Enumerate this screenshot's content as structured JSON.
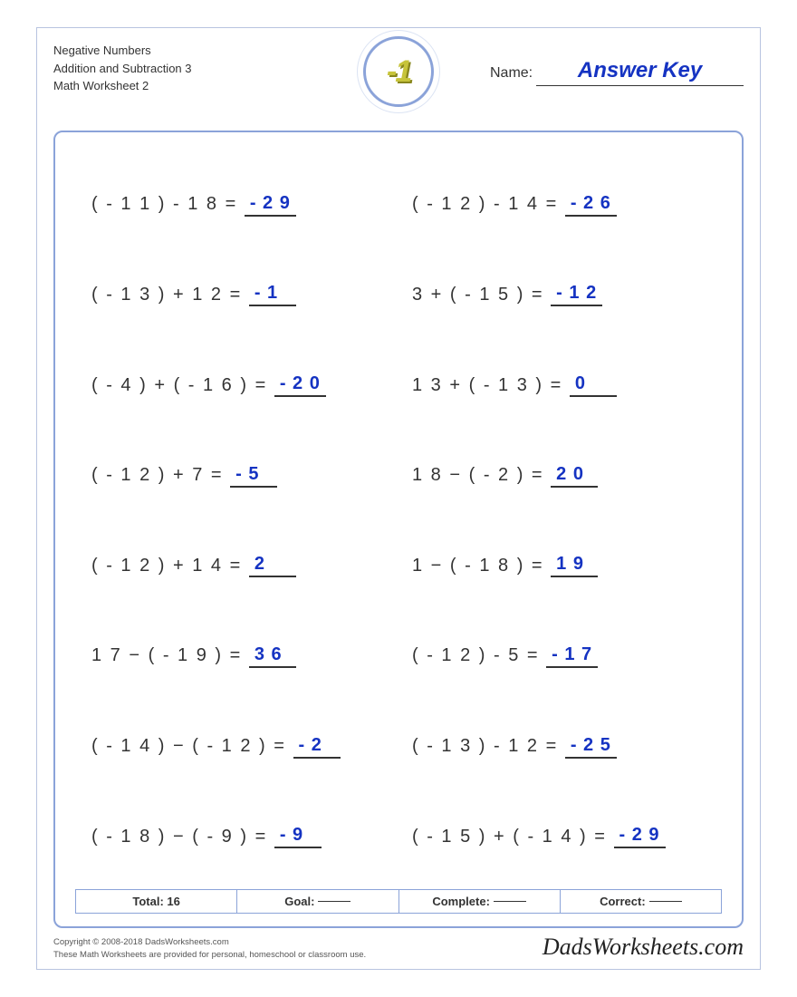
{
  "header": {
    "line1": "Negative Numbers",
    "line2": "Addition and Subtraction 3",
    "line3": "Math Worksheet 2",
    "logo_text": "-1",
    "name_label": "Name:",
    "answer_key": "Answer Key"
  },
  "colors": {
    "border": "#8ba3d9",
    "answer": "#1533c2",
    "logo_fill": "#c7c43a"
  },
  "problems": [
    {
      "expr": "( - 1 1 ) - 1 8 = ",
      "answer": "- 2 9"
    },
    {
      "expr": "( - 1 2 ) - 1 4 = ",
      "answer": "- 2 6"
    },
    {
      "expr": "( - 1 3 ) + 1 2 = ",
      "answer": "- 1"
    },
    {
      "expr": "3 + ( - 1 5 ) = ",
      "answer": "- 1 2"
    },
    {
      "expr": "( - 4 ) + ( - 1 6 ) = ",
      "answer": "- 2 0"
    },
    {
      "expr": "1 3 + ( - 1 3 ) = ",
      "answer": "0"
    },
    {
      "expr": "( - 1 2 ) + 7 = ",
      "answer": "- 5"
    },
    {
      "expr": "1 8 − ( - 2 ) = ",
      "answer": "2 0"
    },
    {
      "expr": "( - 1 2 ) + 1 4 = ",
      "answer": "2"
    },
    {
      "expr": "1 − ( - 1 8 ) = ",
      "answer": "1 9"
    },
    {
      "expr": "1 7 − ( - 1 9 ) = ",
      "answer": "3 6"
    },
    {
      "expr": "( - 1 2 ) - 5 = ",
      "answer": "- 1 7"
    },
    {
      "expr": "( - 1 4 ) − ( - 1 2 ) = ",
      "answer": "- 2"
    },
    {
      "expr": "( - 1 3 ) - 1 2 = ",
      "answer": "- 2 5"
    },
    {
      "expr": "( - 1 8 ) − ( - 9 ) = ",
      "answer": "- 9"
    },
    {
      "expr": "( - 1 5 ) + ( - 1 4 ) = ",
      "answer": "- 2 9"
    }
  ],
  "footer": {
    "total_label": "Total: 16",
    "goal_label": "Goal:",
    "complete_label": "Complete:",
    "correct_label": "Correct:"
  },
  "bottom": {
    "copyright": "Copyright © 2008-2018 DadsWorksheets.com",
    "note": "These Math Worksheets are provided for personal, homeschool or classroom use.",
    "brand": "DadsWorksheets.com"
  }
}
